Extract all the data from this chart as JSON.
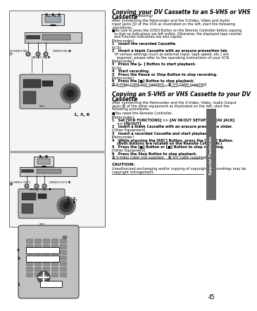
{
  "page_num": "45",
  "bg_color": "#ffffff",
  "sidebar_color": "#6a6a6a",
  "sidebar_text": "Special Features",
  "title1_line1": "Copying your DV Cassette to an S-VHS or VHS",
  "title1_line2": "Cassette",
  "title1_dubbing": " (Dubbing)",
  "title2_line1": "Copying an S-VHS or VHS Cassette to your DV",
  "title2_line2": "Cassette",
  "section1_intro_lines": [
    "After connecting the Palmcorder and the S-Video, Video and Audio",
    "Input Jacks ␰0 of the VCR as illustrated on the left, start the following",
    "procedures."
  ],
  "section1_note_lines": [
    "■Be sure to press the [OSD] Button on the Remote Controller before copying",
    "  so that no Indications are left visible. Otherwise, the displayed tape counter",
    "  and Function indications are also copied."
  ],
  "section1_steps": [
    {
      "text": "[Palmcorder]",
      "bold": false
    },
    {
      "text": "1   Insert the recorded Cassette.",
      "bold": true
    },
    {
      "text": "[VCR]",
      "bold": false
    },
    {
      "text": "2   Insert a blank Cassette with an erasure prevention tab.",
      "bold": true
    },
    {
      "text": "  †If various settings (such as external input, tape speed, etc.) are",
      "bold": false
    },
    {
      "text": "    required, please refer to the operating instructions of your VCR.",
      "bold": false
    },
    {
      "text": "[Palmcorder]",
      "bold": false
    },
    {
      "text": "3   Press the [► ] Button to start playback.",
      "bold": true
    },
    {
      "text": "[VCR]",
      "bold": false
    },
    {
      "text": "4   Start recording.",
      "bold": true
    },
    {
      "text": "5   Press the Pause or Stop Button to stop recording.",
      "bold": true
    },
    {
      "text": "[Palmcorder]",
      "bold": false
    },
    {
      "text": "6   Press the [■] Button to stop playback.",
      "bold": true
    }
  ],
  "cable_note1": "Ⓐ S-Video Cable (not supplied)    Ⓑ A/V Cable (supplied)",
  "section2_intro_lines": [
    "After connecting the Palmcorder and the S-Video, Video, Audio Output",
    "Jacks Ⓒ of the other equipment as illustrated on the left, start the",
    "following procedures.",
    "■You need the Remote Controller."
  ],
  "section2_steps": [
    {
      "text": "[Palmcorder]",
      "bold": false
    },
    {
      "text": "1   Set [VCR FUNCTIONS] >> [AV IN/OUT SETUP] >> [AV JACK]",
      "bold": true
    },
    {
      "text": "    >> [IN/OUT].",
      "bold": true
    },
    {
      "text": "2   Insert a blank Cassette with an erasure prevention slider.",
      "bold": true
    },
    {
      "text": "[Other Equipment]",
      "bold": false
    },
    {
      "text": "3   Insert a recorded Cassette and start playback.",
      "bold": true
    },
    {
      "text": "[Palmcorder]",
      "bold": false
    },
    {
      "text": "4   While pressing the [REC] Button, press the [PLAY] Button.",
      "bold": true
    },
    {
      "text": "    (Both buttons are located on the Remote Controller.)",
      "bold": true
    },
    {
      "text": "5   Press the [■] Button or [■] Button to stop recording.",
      "bold": true
    },
    {
      "text": "[Other Equipment]",
      "bold": false
    },
    {
      "text": "6   Press the Stop Button to stop playback.",
      "bold": true
    }
  ],
  "cable_note2": "Ⓐ S-Video Cable (not supplied)    Ⓑ A/V Cable (supplied)",
  "caution_title": "CAUTION:",
  "caution_text_lines": [
    "Unauthorized exchanging and/or copying of copyrighted recordings may be",
    "copyright infringement."
  ]
}
